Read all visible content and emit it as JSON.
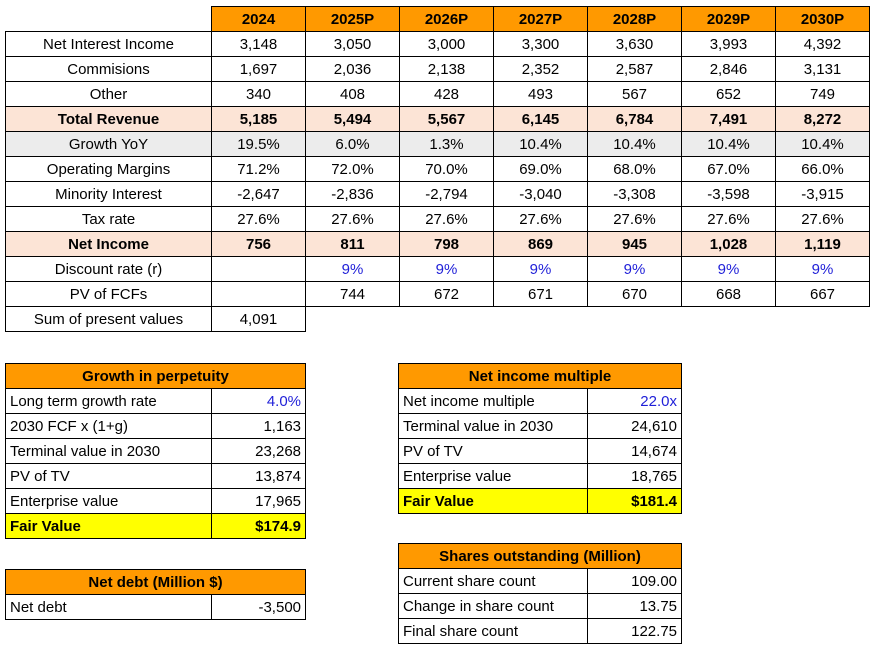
{
  "main_table": {
    "years": [
      "2024",
      "2025P",
      "2026P",
      "2027P",
      "2028P",
      "2029P",
      "2030P"
    ],
    "rows": [
      {
        "label": "Net Interest Income",
        "style": "",
        "values": [
          "3,148",
          "3,050",
          "3,000",
          "3,300",
          "3,630",
          "3,993",
          "4,392"
        ]
      },
      {
        "label": "Commisions",
        "style": "",
        "values": [
          "1,697",
          "2,036",
          "2,138",
          "2,352",
          "2,587",
          "2,846",
          "3,131"
        ]
      },
      {
        "label": "Other",
        "style": "",
        "values": [
          "340",
          "408",
          "428",
          "493",
          "567",
          "652",
          "749"
        ]
      },
      {
        "label": "Total Revenue",
        "style": "tot",
        "values": [
          "5,185",
          "5,494",
          "5,567",
          "6,145",
          "6,784",
          "7,491",
          "8,272"
        ]
      },
      {
        "label": "Growth YoY",
        "style": "grow",
        "values": [
          "19.5%",
          "6.0%",
          "1.3%",
          "10.4%",
          "10.4%",
          "10.4%",
          "10.4%"
        ]
      },
      {
        "label": "Operating Margins",
        "style": "",
        "values": [
          "71.2%",
          "72.0%",
          "70.0%",
          "69.0%",
          "68.0%",
          "67.0%",
          "66.0%"
        ]
      },
      {
        "label": "Minority Interest",
        "style": "",
        "values": [
          "-2,647",
          "-2,836",
          "-2,794",
          "-3,040",
          "-3,308",
          "-3,598",
          "-3,915"
        ]
      },
      {
        "label": "Tax rate",
        "style": "",
        "values": [
          "27.6%",
          "27.6%",
          "27.6%",
          "27.6%",
          "27.6%",
          "27.6%",
          "27.6%"
        ]
      },
      {
        "label": "Net Income",
        "style": "tot",
        "values": [
          "756",
          "811",
          "798",
          "869",
          "945",
          "1,028",
          "1,119"
        ]
      },
      {
        "label": "Discount rate (r)",
        "style": "blue",
        "values": [
          "",
          "9%",
          "9%",
          "9%",
          "9%",
          "9%",
          "9%"
        ]
      },
      {
        "label": "PV of FCFs",
        "style": "",
        "values": [
          "",
          "744",
          "672",
          "671",
          "670",
          "668",
          "667"
        ]
      }
    ],
    "sum_row": {
      "label": "Sum of present values",
      "value": "4,091"
    }
  },
  "growth_in_perpetuity": {
    "title": "Growth in perpetuity",
    "rows": [
      {
        "label": "Long term growth rate",
        "value": "4.0%",
        "blue": true
      },
      {
        "label": "2030 FCF x (1+g)",
        "value": "1,163"
      },
      {
        "label": "Terminal value in 2030",
        "value": "23,268"
      },
      {
        "label": "PV of TV",
        "value": "13,874"
      },
      {
        "label": "Enterprise value",
        "value": "17,965"
      },
      {
        "label": "Fair Value",
        "value": "$174.9",
        "fair": true
      }
    ]
  },
  "net_income_multiple": {
    "title": "Net income multiple",
    "rows": [
      {
        "label": "Net income multiple",
        "value": "22.0x",
        "blue": true
      },
      {
        "label": "Terminal value in 2030",
        "value": "24,610"
      },
      {
        "label": "PV of TV",
        "value": "14,674"
      },
      {
        "label": "Enterprise value",
        "value": "18,765"
      },
      {
        "label": "Fair Value",
        "value": "$181.4",
        "fair": true
      }
    ]
  },
  "net_debt": {
    "title": "Net debt (Million $)",
    "rows": [
      {
        "label": "Net debt",
        "value": "-3,500"
      }
    ]
  },
  "shares_outstanding": {
    "title": "Shares outstanding (Million)",
    "rows": [
      {
        "label": "Current share count",
        "value": "109.00"
      },
      {
        "label": "Change in share count",
        "value": "13.75"
      },
      {
        "label": "Final share count",
        "value": "122.75"
      }
    ]
  },
  "colors": {
    "header": "#ff9900",
    "total_row": "#fce4d6",
    "growth_row": "#ececec",
    "fair_value": "#ffff00",
    "input_blue": "#1f1fd8"
  }
}
